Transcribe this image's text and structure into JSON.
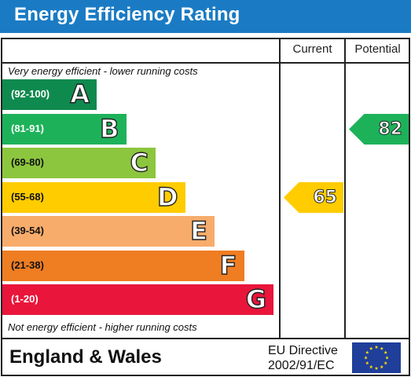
{
  "title": "Energy Efficiency Rating",
  "columns": {
    "current": "Current",
    "potential": "Potential"
  },
  "notes": {
    "top": "Very energy efficient - lower running costs",
    "bottom": "Not energy efficient - higher running costs"
  },
  "footer": {
    "region": "England & Wales",
    "directive_line1": "EU Directive",
    "directive_line2": "2002/91/EC",
    "flag_icon": "eu-flag-icon"
  },
  "chart_data": {
    "type": "bar",
    "title": "Energy Efficiency Rating",
    "bands": [
      {
        "letter": "A",
        "range": "(92-100)",
        "min": 92,
        "max": 100,
        "color": "#0f8a4f"
      },
      {
        "letter": "B",
        "range": "(81-91)",
        "min": 81,
        "max": 91,
        "color": "#1db25a"
      },
      {
        "letter": "C",
        "range": "(69-80)",
        "min": 69,
        "max": 80,
        "color": "#8cc63e"
      },
      {
        "letter": "D",
        "range": "(55-68)",
        "min": 55,
        "max": 68,
        "color": "#ffcc00"
      },
      {
        "letter": "E",
        "range": "(39-54)",
        "min": 39,
        "max": 54,
        "color": "#f7ac6b"
      },
      {
        "letter": "F",
        "range": "(21-38)",
        "min": 21,
        "max": 38,
        "color": "#ef7d22"
      },
      {
        "letter": "G",
        "range": "(1-20)",
        "min": 1,
        "max": 20,
        "color": "#e9153b"
      }
    ],
    "current": {
      "value": 65,
      "band": "D",
      "color": "#ffcc00"
    },
    "potential": {
      "value": 82,
      "band": "B",
      "color": "#1db25a"
    }
  }
}
